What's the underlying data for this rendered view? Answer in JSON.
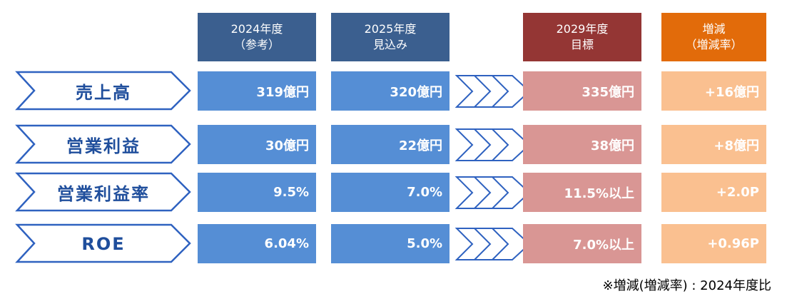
{
  "header": {
    "columns": [
      {
        "lines": [
          "2024年度",
          "（参考）"
        ]
      },
      {
        "lines": [
          "2025年度",
          "見込み"
        ]
      },
      {
        "lines": [
          "2029年度",
          "目標"
        ]
      },
      {
        "lines": [
          "増減",
          "（増減率）"
        ]
      }
    ]
  },
  "table": {
    "rows": [
      {
        "label": "売上高",
        "cells": [
          "319億円",
          "320億円",
          "335億円",
          "+16億円"
        ]
      },
      {
        "label": "営業利益",
        "cells": [
          "30億円",
          "22億円",
          "38億円",
          "+8億円"
        ]
      },
      {
        "label": "営業利益率",
        "cells": [
          "9.5%",
          "7.0%",
          "11.5%以上",
          "+2.0P"
        ]
      },
      {
        "label": "ROE",
        "cells": [
          "6.04%",
          "5.0%",
          "7.0%以上",
          "+0.96P"
        ]
      }
    ]
  },
  "footnote": "※増減(増減率) : 2024年度比"
}
